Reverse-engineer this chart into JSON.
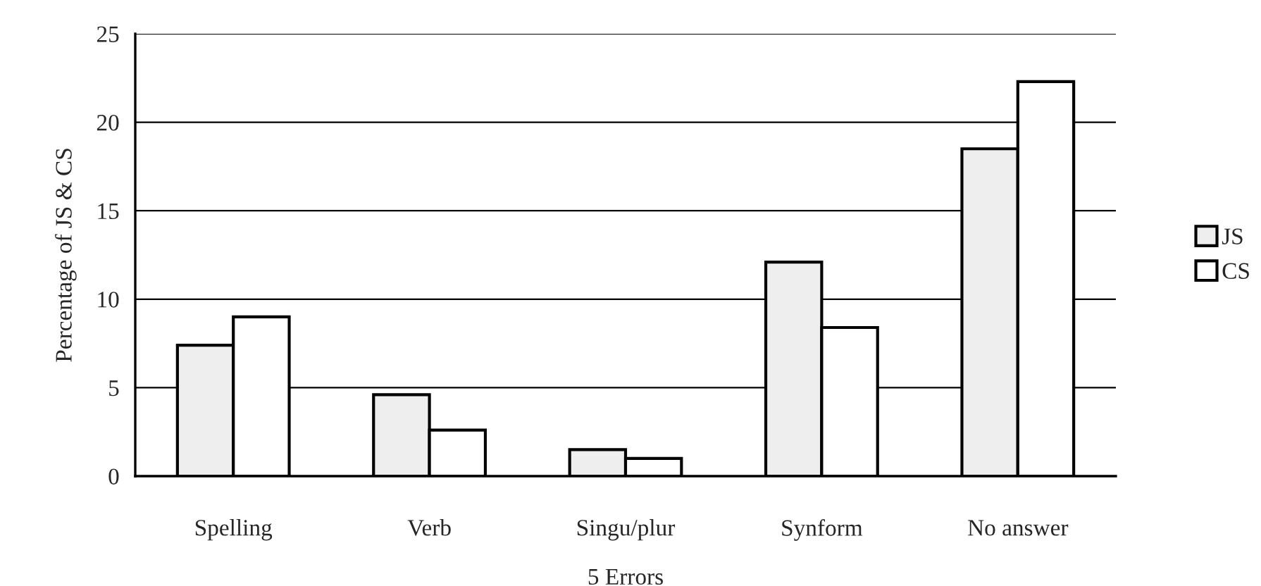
{
  "chart_data": {
    "type": "bar",
    "xlabel": "5 Errors",
    "ylabel": "Percentage of JS & CS",
    "categories": [
      "Spelling",
      "Verb",
      "Singu/plur",
      "Synform",
      "No answer"
    ],
    "series": [
      {
        "name": "JS",
        "color": "#eeeeee",
        "values": [
          7.4,
          4.6,
          1.5,
          12.1,
          18.5
        ]
      },
      {
        "name": "CS",
        "color": "#ffffff",
        "values": [
          9.0,
          2.6,
          1.0,
          8.4,
          22.3
        ]
      }
    ],
    "ylim": [
      0,
      25
    ],
    "yticks": [
      0,
      5,
      10,
      15,
      20,
      25
    ],
    "grid": "y",
    "legend": "right"
  }
}
